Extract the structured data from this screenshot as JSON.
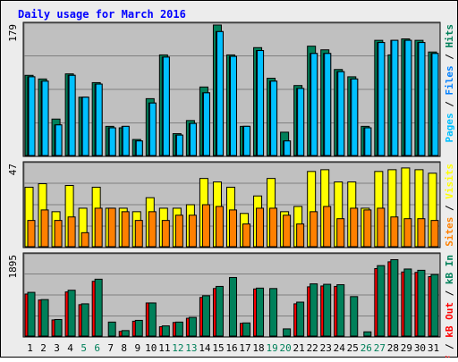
{
  "title": "Daily usage for March 2016",
  "colors": {
    "background": "#ececec",
    "panel": "#c0c0c0",
    "title": "#0000ff",
    "hits": "#00805a",
    "files": "#0080ff",
    "pages": "#00c0ff",
    "visits": "#ffff00",
    "sites": "#ff8000",
    "kb_in": "#00805a",
    "kb_out": "#ff0000",
    "kb_f": "#ff0000",
    "weekend_day": "#00805a",
    "weekday": "#000000"
  },
  "chart_data": [
    {
      "type": "bar",
      "panel": "hits",
      "ymax_label": "179",
      "ylim": [
        0,
        179
      ],
      "axis_label_parts": [
        {
          "text": "Pages",
          "color": "#00c0ff"
        },
        {
          "text": " / ",
          "color": "#000000"
        },
        {
          "text": "Files",
          "color": "#0080ff"
        },
        {
          "text": " / ",
          "color": "#000000"
        },
        {
          "text": "Hits",
          "color": "#00805a"
        }
      ],
      "categories": [
        "1",
        "2",
        "3",
        "4",
        "5",
        "6",
        "7",
        "8",
        "9",
        "10",
        "11",
        "12",
        "13",
        "14",
        "15",
        "16",
        "17",
        "18",
        "19",
        "20",
        "21",
        "22",
        "23",
        "24",
        "25",
        "26",
        "27",
        "28",
        "29",
        "30",
        "31"
      ],
      "series": [
        {
          "name": "Hits",
          "color": "#00805a",
          "values": [
            110,
            105,
            50,
            112,
            80,
            100,
            40,
            38,
            22,
            78,
            138,
            30,
            48,
            94,
            179,
            138,
            40,
            148,
            106,
            32,
            96,
            150,
            145,
            118,
            108,
            40,
            158,
            138,
            160,
            158,
            142
          ]
        },
        {
          "name": "Files",
          "color": "#0080ff",
          "values": [
            108,
            102,
            42,
            110,
            80,
            98,
            38,
            40,
            20,
            72,
            135,
            28,
            44,
            86,
            170,
            136,
            40,
            144,
            102,
            20,
            92,
            140,
            140,
            115,
            105,
            38,
            155,
            158,
            158,
            155,
            140
          ]
        },
        {
          "name": "Pages",
          "color": "#00c0ff",
          "values": [
            108,
            102,
            42,
            110,
            80,
            98,
            38,
            40,
            20,
            72,
            135,
            28,
            44,
            86,
            170,
            136,
            40,
            144,
            102,
            20,
            92,
            140,
            140,
            115,
            105,
            38,
            155,
            158,
            158,
            155,
            140
          ]
        }
      ]
    },
    {
      "type": "bar",
      "panel": "visits",
      "ymax_label": "47",
      "ylim": [
        0,
        47
      ],
      "axis_label_parts": [
        {
          "text": "Sites",
          "color": "#ff8000"
        },
        {
          "text": " / ",
          "color": "#000000"
        },
        {
          "text": "Visits",
          "color": "#ffff00"
        }
      ],
      "categories": [
        "1",
        "2",
        "3",
        "4",
        "5",
        "6",
        "7",
        "8",
        "9",
        "10",
        "11",
        "12",
        "13",
        "14",
        "15",
        "16",
        "17",
        "18",
        "19",
        "20",
        "21",
        "22",
        "23",
        "24",
        "25",
        "26",
        "27",
        "28",
        "29",
        "30",
        "31"
      ],
      "series": [
        {
          "name": "Visits",
          "color": "#ffff00",
          "values": [
            34,
            36,
            20,
            35,
            22,
            34,
            22,
            22,
            20,
            28,
            22,
            22,
            24,
            39,
            37,
            34,
            19,
            29,
            39,
            20,
            23,
            43,
            44,
            37,
            37,
            22,
            43,
            44,
            45,
            44,
            42
          ]
        },
        {
          "name": "Sites",
          "color": "#ff8000",
          "values": [
            15,
            21,
            15,
            17,
            8,
            22,
            22,
            20,
            15,
            20,
            15,
            18,
            18,
            24,
            23,
            21,
            13,
            22,
            22,
            18,
            13,
            20,
            23,
            16,
            22,
            21,
            22,
            17,
            16,
            16,
            15
          ]
        }
      ]
    },
    {
      "type": "bar",
      "panel": "kbytes",
      "ymax_label": "1895",
      "ylim": [
        0,
        1895
      ],
      "axis_label_parts": [
        {
          "text": "kB F",
          "color": "#ff0000"
        },
        {
          "text": " / ",
          "color": "#000000"
        },
        {
          "text": "kB Out",
          "color": "#ff0000"
        },
        {
          "text": " / ",
          "color": "#000000"
        },
        {
          "text": "kB In",
          "color": "#00805a"
        }
      ],
      "categories": [
        "1",
        "2",
        "3",
        "4",
        "5",
        "6",
        "7",
        "8",
        "9",
        "10",
        "11",
        "12",
        "13",
        "14",
        "15",
        "16",
        "17",
        "18",
        "19",
        "20",
        "21",
        "22",
        "23",
        "24",
        "25",
        "26",
        "27",
        "28",
        "29",
        "30",
        "31"
      ],
      "series": [
        {
          "name": "kB In",
          "color": "#00805a",
          "values": [
            1030,
            860,
            390,
            1080,
            760,
            1340,
            330,
            130,
            370,
            780,
            240,
            330,
            440,
            950,
            1170,
            1380,
            310,
            1130,
            1120,
            170,
            800,
            1230,
            1220,
            1210,
            930,
            100,
            1660,
            1800,
            1580,
            1550,
            1450
          ]
        },
        {
          "name": "kB Out",
          "color": "#ff0000",
          "values": [
            990,
            850,
            380,
            1040,
            740,
            1290,
            0,
            110,
            350,
            780,
            220,
            320,
            420,
            910,
            1120,
            0,
            300,
            1110,
            0,
            0,
            760,
            1160,
            1180,
            1170,
            0,
            0,
            1590,
            1750,
            1510,
            1500,
            1400
          ]
        }
      ]
    }
  ],
  "x_labels": [
    {
      "text": "1",
      "weekend": false
    },
    {
      "text": "2",
      "weekend": false
    },
    {
      "text": "3",
      "weekend": false
    },
    {
      "text": "4",
      "weekend": false
    },
    {
      "text": "5",
      "weekend": true
    },
    {
      "text": "6",
      "weekend": true
    },
    {
      "text": "7",
      "weekend": false
    },
    {
      "text": "8",
      "weekend": false
    },
    {
      "text": "9",
      "weekend": false
    },
    {
      "text": "10",
      "weekend": false
    },
    {
      "text": "11",
      "weekend": false
    },
    {
      "text": "12",
      "weekend": true
    },
    {
      "text": "13",
      "weekend": true
    },
    {
      "text": "14",
      "weekend": false
    },
    {
      "text": "15",
      "weekend": false
    },
    {
      "text": "16",
      "weekend": false
    },
    {
      "text": "17",
      "weekend": false
    },
    {
      "text": "18",
      "weekend": false
    },
    {
      "text": "19",
      "weekend": true
    },
    {
      "text": "20",
      "weekend": true
    },
    {
      "text": "21",
      "weekend": false
    },
    {
      "text": "22",
      "weekend": false
    },
    {
      "text": "23",
      "weekend": false
    },
    {
      "text": "24",
      "weekend": false
    },
    {
      "text": "25",
      "weekend": false
    },
    {
      "text": "26",
      "weekend": true
    },
    {
      "text": "27",
      "weekend": true
    },
    {
      "text": "28",
      "weekend": false
    },
    {
      "text": "29",
      "weekend": false
    },
    {
      "text": "30",
      "weekend": false
    },
    {
      "text": "31",
      "weekend": false
    }
  ]
}
